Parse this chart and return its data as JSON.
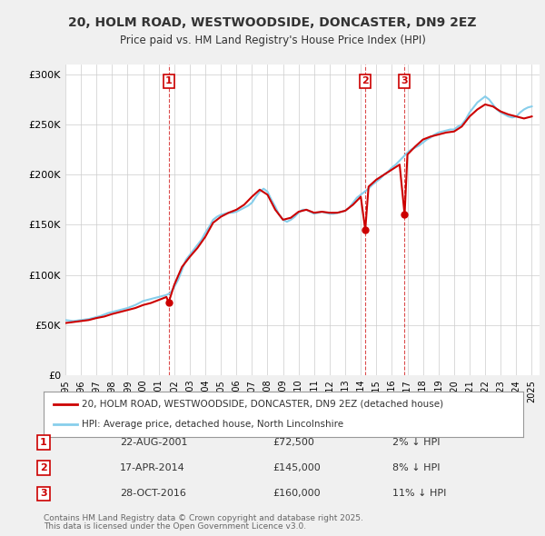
{
  "title": "20, HOLM ROAD, WESTWOODSIDE, DONCASTER, DN9 2EZ",
  "subtitle": "Price paid vs. HM Land Registry's House Price Index (HPI)",
  "ylabel": "",
  "xlabel": "",
  "ylim": [
    0,
    310000
  ],
  "yticks": [
    0,
    50000,
    100000,
    150000,
    200000,
    250000,
    300000
  ],
  "ytick_labels": [
    "£0",
    "£50K",
    "£100K",
    "£150K",
    "£200K",
    "£250K",
    "£300K"
  ],
  "background_color": "#f0f0f0",
  "plot_bg_color": "#ffffff",
  "grid_color": "#cccccc",
  "line_color_hpi": "#87CEEB",
  "line_color_property": "#cc0000",
  "legend_label_property": "20, HOLM ROAD, WESTWOODSIDE, DONCASTER, DN9 2EZ (detached house)",
  "legend_label_hpi": "HPI: Average price, detached house, North Lincolnshire",
  "transactions": [
    {
      "label": "1",
      "date": "22-AUG-2001",
      "price": 72500,
      "year": 2001.64
    },
    {
      "label": "2",
      "date": "17-APR-2014",
      "price": 145000,
      "year": 2014.29
    },
    {
      "label": "3",
      "date": "28-OCT-2016",
      "price": 160000,
      "year": 2016.82
    }
  ],
  "footer_line1": "Contains HM Land Registry data © Crown copyright and database right 2025.",
  "footer_line2": "This data is licensed under the Open Government Licence v3.0.",
  "hpi_data": {
    "years": [
      1995.0,
      1995.25,
      1995.5,
      1995.75,
      1996.0,
      1996.25,
      1996.5,
      1996.75,
      1997.0,
      1997.25,
      1997.5,
      1997.75,
      1998.0,
      1998.25,
      1998.5,
      1998.75,
      1999.0,
      1999.25,
      1999.5,
      1999.75,
      2000.0,
      2000.25,
      2000.5,
      2000.75,
      2001.0,
      2001.25,
      2001.5,
      2001.75,
      2002.0,
      2002.25,
      2002.5,
      2002.75,
      2003.0,
      2003.25,
      2003.5,
      2003.75,
      2004.0,
      2004.25,
      2004.5,
      2004.75,
      2005.0,
      2005.25,
      2005.5,
      2005.75,
      2006.0,
      2006.25,
      2006.5,
      2006.75,
      2007.0,
      2007.25,
      2007.5,
      2007.75,
      2008.0,
      2008.25,
      2008.5,
      2008.75,
      2009.0,
      2009.25,
      2009.5,
      2009.75,
      2010.0,
      2010.25,
      2010.5,
      2010.75,
      2011.0,
      2011.25,
      2011.5,
      2011.75,
      2012.0,
      2012.25,
      2012.5,
      2012.75,
      2013.0,
      2013.25,
      2013.5,
      2013.75,
      2014.0,
      2014.25,
      2014.5,
      2014.75,
      2015.0,
      2015.25,
      2015.5,
      2015.75,
      2016.0,
      2016.25,
      2016.5,
      2016.75,
      2017.0,
      2017.25,
      2017.5,
      2017.75,
      2018.0,
      2018.25,
      2018.5,
      2018.75,
      2019.0,
      2019.25,
      2019.5,
      2019.75,
      2020.0,
      2020.25,
      2020.5,
      2020.75,
      2021.0,
      2021.25,
      2021.5,
      2021.75,
      2022.0,
      2022.25,
      2022.5,
      2022.75,
      2023.0,
      2023.25,
      2023.5,
      2023.75,
      2024.0,
      2024.25,
      2024.5,
      2024.75,
      2025.0
    ],
    "values": [
      55000,
      54500,
      54000,
      54500,
      55000,
      55500,
      56000,
      57000,
      58000,
      59000,
      60500,
      62000,
      63000,
      64000,
      65000,
      66000,
      67000,
      68500,
      70000,
      72000,
      74000,
      75000,
      76000,
      77000,
      78000,
      79000,
      80000,
      82000,
      88000,
      95000,
      105000,
      115000,
      120000,
      125000,
      130000,
      135000,
      142000,
      148000,
      155000,
      158000,
      160000,
      161000,
      162000,
      162000,
      163000,
      165000,
      167000,
      169000,
      172000,
      178000,
      183000,
      186000,
      183000,
      175000,
      168000,
      160000,
      155000,
      153000,
      155000,
      158000,
      162000,
      165000,
      165000,
      163000,
      161000,
      162000,
      163000,
      162000,
      161000,
      161000,
      162000,
      163000,
      164000,
      167000,
      172000,
      177000,
      180000,
      183000,
      186000,
      190000,
      193000,
      196000,
      200000,
      203000,
      207000,
      210000,
      214000,
      218000,
      222000,
      225000,
      227000,
      229000,
      232000,
      235000,
      237000,
      240000,
      242000,
      243000,
      244000,
      245000,
      245000,
      248000,
      250000,
      255000,
      262000,
      267000,
      272000,
      275000,
      278000,
      275000,
      270000,
      265000,
      262000,
      260000,
      258000,
      257000,
      258000,
      262000,
      265000,
      267000,
      268000
    ]
  },
  "property_data": {
    "years": [
      1995.0,
      1995.5,
      1996.0,
      1996.5,
      1997.0,
      1997.5,
      1998.0,
      1998.5,
      1999.0,
      1999.5,
      2000.0,
      2000.5,
      2001.0,
      2001.5,
      2001.64,
      2002.0,
      2002.5,
      2003.0,
      2003.5,
      2004.0,
      2004.5,
      2005.0,
      2005.5,
      2006.0,
      2006.5,
      2007.0,
      2007.5,
      2008.0,
      2008.5,
      2009.0,
      2009.5,
      2010.0,
      2010.5,
      2011.0,
      2011.5,
      2012.0,
      2012.5,
      2013.0,
      2013.5,
      2014.0,
      2014.29,
      2014.5,
      2015.0,
      2015.5,
      2016.0,
      2016.5,
      2016.82,
      2017.0,
      2017.5,
      2018.0,
      2018.5,
      2019.0,
      2019.5,
      2020.0,
      2020.5,
      2021.0,
      2021.5,
      2022.0,
      2022.5,
      2023.0,
      2023.5,
      2024.0,
      2024.5,
      2025.0
    ],
    "values": [
      52000,
      53000,
      54000,
      55000,
      57000,
      58500,
      61000,
      63000,
      65000,
      67000,
      70000,
      72000,
      75000,
      78000,
      72500,
      90000,
      108000,
      118000,
      127000,
      138000,
      152000,
      158000,
      162000,
      165000,
      170000,
      178000,
      185000,
      180000,
      165000,
      155000,
      157000,
      163000,
      165000,
      162000,
      163000,
      162000,
      162000,
      164000,
      170000,
      178000,
      145000,
      188000,
      195000,
      200000,
      205000,
      210000,
      160000,
      220000,
      228000,
      235000,
      238000,
      240000,
      242000,
      243000,
      248000,
      258000,
      265000,
      270000,
      268000,
      263000,
      260000,
      258000,
      256000,
      258000
    ]
  }
}
